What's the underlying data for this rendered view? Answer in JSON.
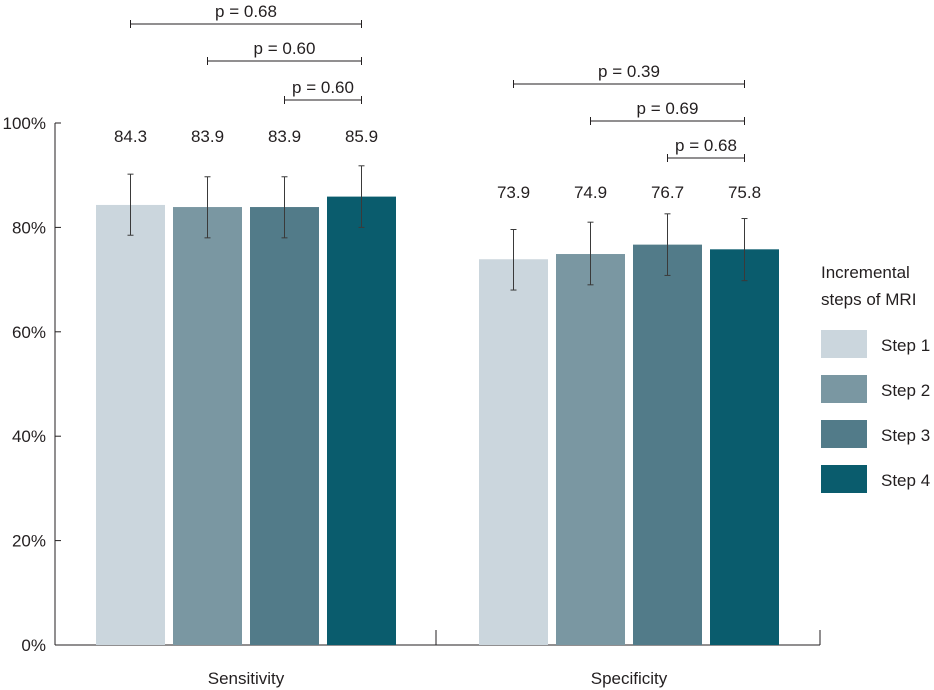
{
  "chart_data": {
    "type": "bar",
    "categories": [
      "Sensitivity",
      "Specificity"
    ],
    "series": [
      {
        "name": "Step 1",
        "color": "#cbd6dd",
        "values": [
          84.3,
          73.9
        ],
        "value_labels": [
          "84.3",
          "73.9"
        ],
        "err_low": [
          78.5,
          68.0
        ],
        "err_high": [
          90.2,
          79.6
        ]
      },
      {
        "name": "Step 2",
        "color": "#7a97a2",
        "values": [
          83.9,
          74.9
        ],
        "value_labels": [
          "83.9",
          "74.9"
        ],
        "err_low": [
          78.0,
          69.0
        ],
        "err_high": [
          89.7,
          81.0
        ]
      },
      {
        "name": "Step 3",
        "color": "#527b89",
        "values": [
          83.9,
          76.7
        ],
        "value_labels": [
          "83.9",
          "76.7"
        ],
        "err_low": [
          78.0,
          70.8
        ],
        "err_high": [
          89.7,
          82.6
        ]
      },
      {
        "name": "Step 4",
        "color": "#0a5c6d",
        "values": [
          85.9,
          75.8
        ],
        "value_labels": [
          "85.9",
          "75.8"
        ],
        "err_low": [
          80.0,
          69.8
        ],
        "err_high": [
          91.8,
          81.7
        ]
      }
    ],
    "ylim": [
      0,
      100
    ],
    "yticks": [
      {
        "value": 0,
        "label": "0%"
      },
      {
        "value": 20,
        "label": "20%"
      },
      {
        "value": 40,
        "label": "40%"
      },
      {
        "value": 60,
        "label": "60%"
      },
      {
        "value": 80,
        "label": "80%"
      },
      {
        "value": 100,
        "label": "100%"
      }
    ],
    "legend": {
      "title_lines": [
        "Incremental",
        "steps of MRI"
      ],
      "placement": "right"
    },
    "comparisons": [
      {
        "group": 0,
        "from_series": 0,
        "to_series": 3,
        "label": "p = 0.68"
      },
      {
        "group": 0,
        "from_series": 1,
        "to_series": 3,
        "label": "p = 0.60"
      },
      {
        "group": 0,
        "from_series": 2,
        "to_series": 3,
        "label": "p = 0.60"
      },
      {
        "group": 1,
        "from_series": 0,
        "to_series": 3,
        "label": "p = 0.39"
      },
      {
        "group": 1,
        "from_series": 1,
        "to_series": 3,
        "label": "p = 0.69"
      },
      {
        "group": 1,
        "from_series": 2,
        "to_series": 3,
        "label": "p = 0.68"
      }
    ]
  }
}
